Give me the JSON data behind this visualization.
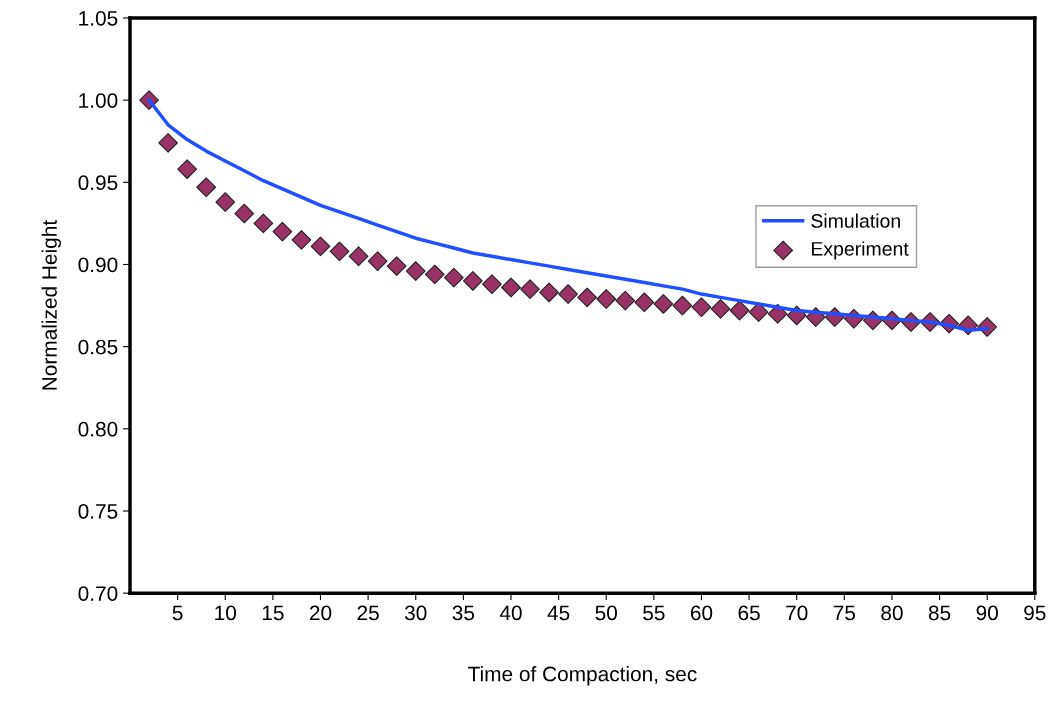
{
  "chart_data": {
    "type": "line",
    "xlabel": "Time of Compaction, sec",
    "ylabel": "Normalized Height",
    "xlim": [
      0,
      95
    ],
    "xticks": [
      5,
      10,
      15,
      20,
      25,
      30,
      35,
      40,
      45,
      50,
      55,
      60,
      65,
      70,
      75,
      80,
      85,
      90,
      95
    ],
    "ylim": [
      0.7,
      1.05
    ],
    "yticks": [
      {
        "value": 0.7,
        "label": "0.70"
      },
      {
        "value": 0.75,
        "label": "0.75"
      },
      {
        "value": 0.8,
        "label": "0.80"
      },
      {
        "value": 0.85,
        "label": "0.85"
      },
      {
        "value": 0.9,
        "label": "0.90"
      },
      {
        "value": 0.95,
        "label": "0.95"
      },
      {
        "value": 1.0,
        "label": "1.00"
      },
      {
        "value": 1.05,
        "label": "1.05"
      }
    ],
    "grid": false,
    "legend": "right",
    "series": [
      {
        "name": "Simulation",
        "color": "#1f4fff",
        "marker": "none",
        "x": [
          2,
          4,
          6,
          8,
          10,
          12,
          14,
          16,
          18,
          20,
          22,
          24,
          26,
          28,
          30,
          32,
          34,
          36,
          38,
          40,
          42,
          44,
          46,
          48,
          50,
          52,
          54,
          56,
          58,
          60,
          62,
          64,
          66,
          68,
          70,
          72,
          74,
          76,
          78,
          80,
          82,
          84,
          86,
          88,
          90
        ],
        "values": [
          1.0,
          0.985,
          0.976,
          0.969,
          0.963,
          0.957,
          0.951,
          0.946,
          0.941,
          0.936,
          0.932,
          0.928,
          0.924,
          0.92,
          0.916,
          0.913,
          0.91,
          0.907,
          0.905,
          0.903,
          0.901,
          0.899,
          0.897,
          0.895,
          0.893,
          0.891,
          0.889,
          0.887,
          0.885,
          0.882,
          0.88,
          0.878,
          0.876,
          0.874,
          0.872,
          0.871,
          0.87,
          0.869,
          0.868,
          0.867,
          0.866,
          0.865,
          0.863,
          0.86,
          0.861
        ]
      },
      {
        "name": "Experiment",
        "type": "scatter",
        "color": "#993366",
        "marker": "diamond",
        "x": [
          2,
          4,
          6,
          8,
          10,
          12,
          14,
          16,
          18,
          20,
          22,
          24,
          26,
          28,
          30,
          32,
          34,
          36,
          38,
          40,
          42,
          44,
          46,
          48,
          50,
          52,
          54,
          56,
          58,
          60,
          62,
          64,
          66,
          68,
          70,
          72,
          74,
          76,
          78,
          80,
          82,
          84,
          86,
          88,
          90
        ],
        "values": [
          1.0,
          0.974,
          0.958,
          0.947,
          0.938,
          0.931,
          0.925,
          0.92,
          0.915,
          0.911,
          0.908,
          0.905,
          0.902,
          0.899,
          0.896,
          0.894,
          0.892,
          0.89,
          0.888,
          0.886,
          0.885,
          0.883,
          0.882,
          0.88,
          0.879,
          0.878,
          0.877,
          0.876,
          0.875,
          0.874,
          0.873,
          0.872,
          0.871,
          0.87,
          0.869,
          0.868,
          0.868,
          0.867,
          0.866,
          0.866,
          0.865,
          0.865,
          0.864,
          0.863,
          0.862
        ]
      }
    ]
  }
}
